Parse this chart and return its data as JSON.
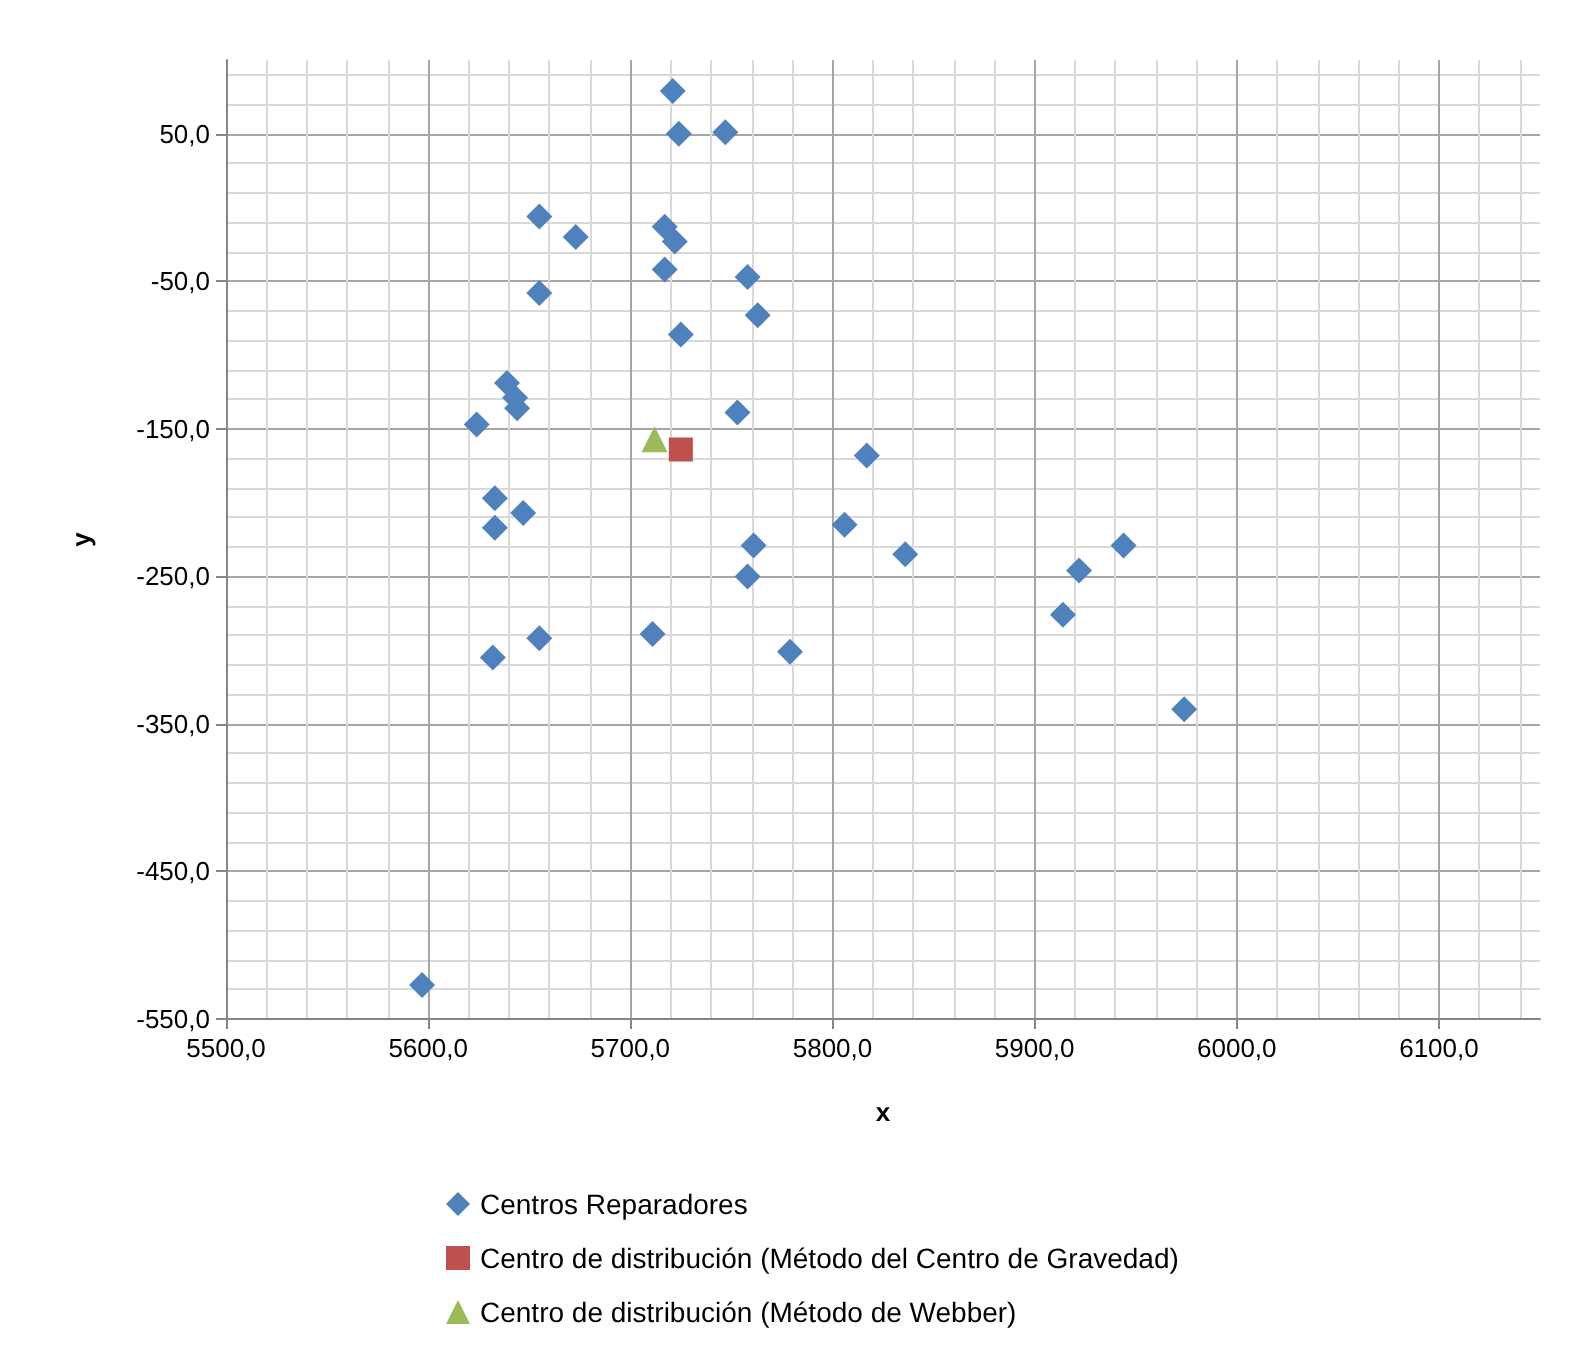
{
  "chart_data": {
    "type": "scatter",
    "xlabel": "x",
    "ylabel": "y",
    "xlim": [
      5500,
      6150
    ],
    "ylim": [
      -550,
      100
    ],
    "xticks": [
      {
        "value": 5500,
        "label": "5500,0"
      },
      {
        "value": 5600,
        "label": "5600,0"
      },
      {
        "value": 5700,
        "label": "5700,0"
      },
      {
        "value": 5800,
        "label": "5800,0"
      },
      {
        "value": 5900,
        "label": "5900,0"
      },
      {
        "value": 6000,
        "label": "6000,0"
      },
      {
        "value": 6100,
        "label": "6100,0"
      }
    ],
    "yticks": [
      {
        "value": 50,
        "label": "50,0"
      },
      {
        "value": -50,
        "label": "-50,0"
      },
      {
        "value": -150,
        "label": "-150,0"
      },
      {
        "value": -250,
        "label": "-250,0"
      },
      {
        "value": -350,
        "label": "-350,0"
      },
      {
        "value": -450,
        "label": "-450,0"
      },
      {
        "value": -550,
        "label": "-550,0"
      }
    ],
    "grid": true,
    "legend": "bottom",
    "series": [
      {
        "name": "Centros Reparadores",
        "color": "#4f81bd",
        "marker": "diamond",
        "x": [
          5721,
          5724,
          5747,
          5655,
          5673,
          5717,
          5722,
          5717,
          5758,
          5655,
          5763,
          5725,
          5639,
          5643,
          5644,
          5624,
          5753,
          5817,
          5633,
          5647,
          5633,
          5806,
          5761,
          5836,
          5944,
          5758,
          5655,
          5632,
          5711,
          5779,
          5597,
          5922,
          5914,
          5974
        ],
        "values": [
          79,
          50,
          51,
          -6,
          -20,
          -13,
          -23,
          -42,
          -47,
          -58,
          -73,
          -86,
          -119,
          -129,
          -136,
          -147,
          -139,
          -168,
          -197,
          -207,
          -217,
          -215,
          -229,
          -235,
          -229,
          -250,
          -292,
          -305,
          -289,
          -301,
          -527,
          -246,
          -276,
          -340
        ]
      },
      {
        "name": "Centro de distribución (Método del Centro de Gravedad)",
        "color": "#c0504d",
        "marker": "square",
        "x": [
          5725
        ],
        "values": [
          -164
        ]
      },
      {
        "name": "Centro de distribución (Método de Webber)",
        "color": "#9bbb59",
        "marker": "triangle",
        "x": [
          5712
        ],
        "values": [
          -157
        ]
      }
    ]
  }
}
